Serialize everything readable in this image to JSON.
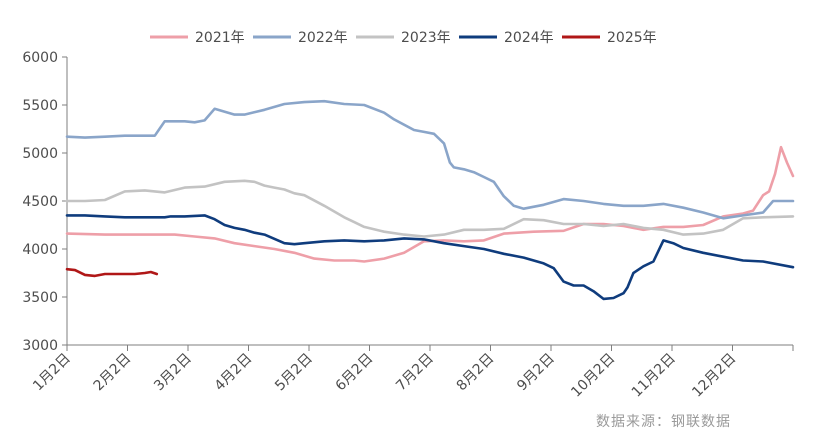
{
  "chart_data": {
    "type": "line",
    "title": "",
    "xlabel": "",
    "ylabel": "",
    "x_tick_labels": [
      "1月2日",
      "2月2日",
      "3月2日",
      "4月2日",
      "5月2日",
      "6月2日",
      "7月2日",
      "8月2日",
      "9月2日",
      "10月2日",
      "11月2日",
      "12月2日"
    ],
    "y_tick_labels": [
      "3000",
      "3500",
      "4000",
      "4500",
      "5000",
      "5500",
      "6000"
    ],
    "ylim": [
      3000,
      6000
    ],
    "x_unit": "day-of-year",
    "xlim": [
      1,
      365
    ],
    "grid": false,
    "legend_position": "top",
    "source_note": "数据来源：钢联数据",
    "series": [
      {
        "name": "2021年",
        "color": "#EE9FA8",
        "x": [
          1,
          20,
          40,
          55,
          65,
          75,
          85,
          95,
          105,
          115,
          125,
          135,
          145,
          150,
          160,
          170,
          180,
          190,
          200,
          210,
          220,
          235,
          250,
          260,
          270,
          280,
          290,
          300,
          310,
          320,
          330,
          340,
          345,
          350,
          353,
          356,
          359,
          362,
          365
        ],
        "values": [
          4160,
          4150,
          4150,
          4150,
          4130,
          4110,
          4060,
          4030,
          4000,
          3960,
          3900,
          3880,
          3880,
          3870,
          3900,
          3960,
          4080,
          4090,
          4080,
          4090,
          4160,
          4180,
          4190,
          4260,
          4260,
          4240,
          4200,
          4230,
          4230,
          4250,
          4340,
          4370,
          4400,
          4560,
          4600,
          4780,
          5060,
          4900,
          4760
        ]
      },
      {
        "name": "2022年",
        "color": "#8AA5C9",
        "x": [
          1,
          10,
          20,
          30,
          40,
          45,
          50,
          60,
          65,
          70,
          75,
          85,
          90,
          100,
          110,
          120,
          130,
          140,
          150,
          160,
          165,
          175,
          180,
          185,
          190,
          193,
          195,
          200,
          205,
          210,
          215,
          220,
          225,
          230,
          240,
          250,
          260,
          270,
          280,
          290,
          300,
          310,
          320,
          330,
          340,
          350,
          355,
          365
        ],
        "values": [
          5170,
          5160,
          5170,
          5180,
          5180,
          5180,
          5330,
          5330,
          5320,
          5340,
          5460,
          5400,
          5400,
          5450,
          5510,
          5530,
          5540,
          5510,
          5500,
          5420,
          5350,
          5240,
          5220,
          5200,
          5100,
          4900,
          4850,
          4830,
          4800,
          4750,
          4700,
          4550,
          4450,
          4420,
          4460,
          4520,
          4500,
          4470,
          4450,
          4450,
          4470,
          4430,
          4380,
          4320,
          4350,
          4380,
          4500,
          4500
        ]
      },
      {
        "name": "2023年",
        "color": "#C3C3C3",
        "x": [
          1,
          10,
          20,
          30,
          40,
          50,
          60,
          70,
          80,
          90,
          95,
          100,
          105,
          110,
          115,
          120,
          130,
          140,
          145,
          150,
          160,
          170,
          180,
          190,
          200,
          210,
          220,
          230,
          240,
          250,
          260,
          270,
          280,
          290,
          300,
          310,
          320,
          330,
          340,
          350,
          365
        ],
        "values": [
          4500,
          4500,
          4510,
          4600,
          4610,
          4590,
          4640,
          4650,
          4700,
          4710,
          4700,
          4660,
          4640,
          4620,
          4580,
          4560,
          4450,
          4330,
          4280,
          4230,
          4180,
          4150,
          4130,
          4150,
          4200,
          4200,
          4210,
          4310,
          4300,
          4260,
          4260,
          4240,
          4260,
          4220,
          4200,
          4150,
          4160,
          4200,
          4320,
          4330,
          4340
        ]
      },
      {
        "name": "2024年",
        "color": "#0F3C7D",
        "x": [
          1,
          10,
          20,
          30,
          40,
          50,
          53,
          60,
          70,
          75,
          80,
          85,
          90,
          95,
          100,
          110,
          115,
          120,
          130,
          140,
          150,
          160,
          170,
          180,
          190,
          200,
          210,
          220,
          230,
          240,
          245,
          250,
          255,
          260,
          265,
          270,
          275,
          280,
          282,
          285,
          290,
          295,
          300,
          305,
          310,
          320,
          330,
          340,
          350,
          365
        ],
        "values": [
          4350,
          4350,
          4340,
          4330,
          4330,
          4330,
          4340,
          4340,
          4350,
          4310,
          4250,
          4220,
          4200,
          4170,
          4150,
          4060,
          4050,
          4060,
          4080,
          4090,
          4080,
          4090,
          4110,
          4100,
          4060,
          4030,
          4000,
          3950,
          3910,
          3850,
          3800,
          3660,
          3620,
          3620,
          3560,
          3480,
          3490,
          3540,
          3600,
          3750,
          3820,
          3870,
          4090,
          4060,
          4010,
          3960,
          3920,
          3880,
          3870,
          3810
        ]
      },
      {
        "name": "2025年",
        "color": "#B01717",
        "x": [
          1,
          5,
          10,
          15,
          20,
          25,
          30,
          35,
          40,
          43,
          46
        ],
        "values": [
          3790,
          3780,
          3730,
          3720,
          3740,
          3740,
          3740,
          3740,
          3750,
          3760,
          3740
        ]
      }
    ]
  }
}
